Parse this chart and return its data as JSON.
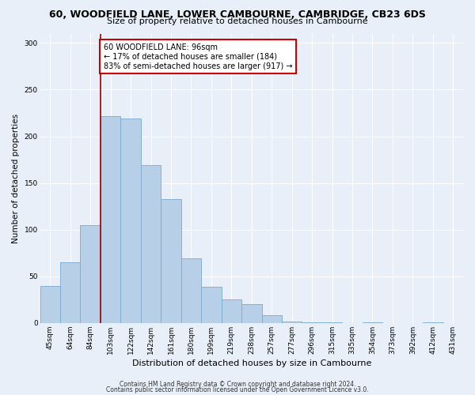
{
  "title": "60, WOODFIELD LANE, LOWER CAMBOURNE, CAMBRIDGE, CB23 6DS",
  "subtitle": "Size of property relative to detached houses in Cambourne",
  "xlabel": "Distribution of detached houses by size in Cambourne",
  "ylabel": "Number of detached properties",
  "bin_labels": [
    "45sqm",
    "64sqm",
    "84sqm",
    "103sqm",
    "122sqm",
    "142sqm",
    "161sqm",
    "180sqm",
    "199sqm",
    "219sqm",
    "238sqm",
    "257sqm",
    "277sqm",
    "296sqm",
    "315sqm",
    "335sqm",
    "354sqm",
    "373sqm",
    "392sqm",
    "412sqm",
    "431sqm"
  ],
  "bar_heights": [
    40,
    65,
    105,
    222,
    219,
    169,
    133,
    69,
    39,
    25,
    20,
    8,
    2,
    1,
    1,
    0,
    1,
    0,
    0,
    1,
    0
  ],
  "bar_color": "#b8cfe8",
  "bar_edge_color": "#7aaad0",
  "bg_color": "#e8eff8",
  "vline_color": "#990000",
  "annotation_text": "60 WOODFIELD LANE: 96sqm\n← 17% of detached houses are smaller (184)\n83% of semi-detached houses are larger (917) →",
  "annotation_box_facecolor": "#ffffff",
  "annotation_box_edgecolor": "#cc0000",
  "ylim": [
    0,
    310
  ],
  "yticks": [
    0,
    50,
    100,
    150,
    200,
    250,
    300
  ],
  "footer1": "Contains HM Land Registry data © Crown copyright and database right 2024.",
  "footer2": "Contains public sector information licensed under the Open Government Licence v3.0.",
  "title_fontsize": 9,
  "subtitle_fontsize": 8,
  "xlabel_fontsize": 8,
  "ylabel_fontsize": 7.5,
  "tick_fontsize": 6.5,
  "annotation_fontsize": 7,
  "footer_fontsize": 5.5,
  "vline_bin_index": 3
}
